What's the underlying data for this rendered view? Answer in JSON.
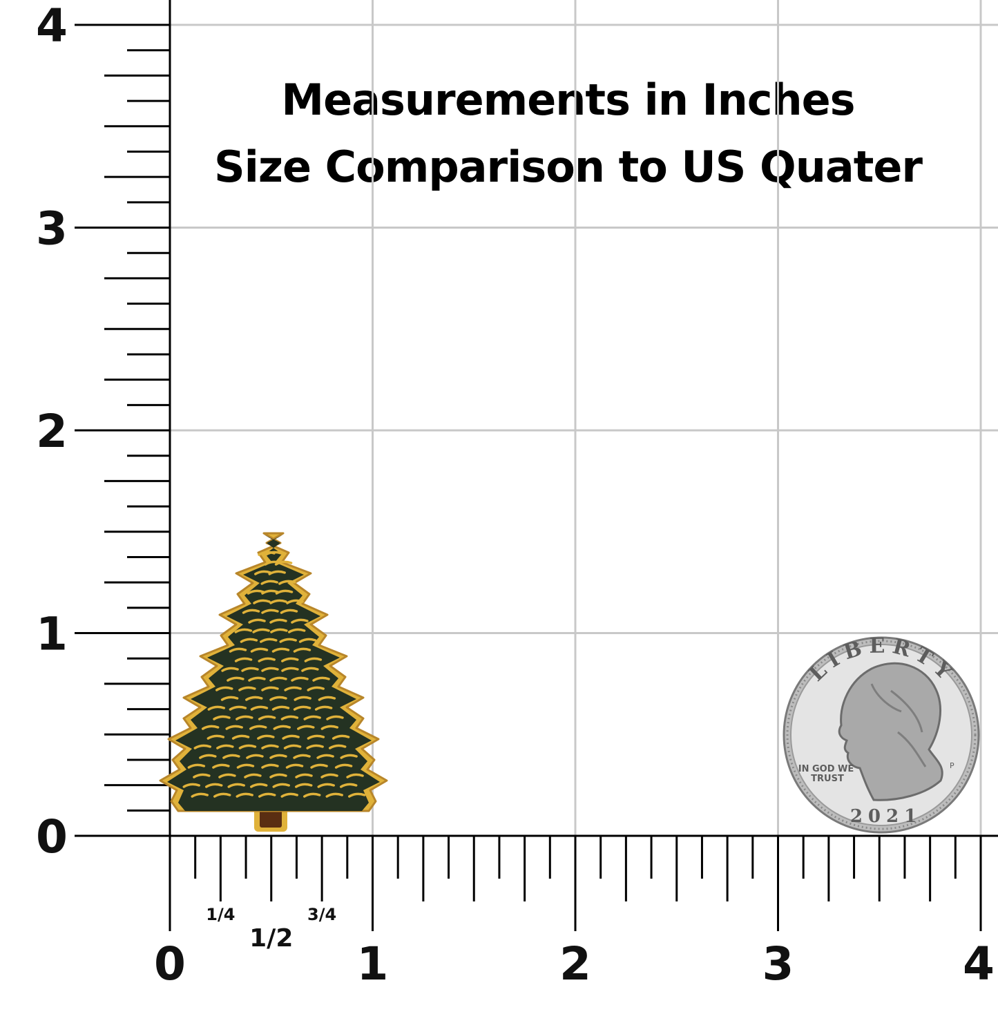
{
  "heading": {
    "line1": "Measurements in Inches",
    "line2": "Size Comparison to US Quater"
  },
  "ruler": {
    "unit_labels": [
      "0",
      "1",
      "2",
      "3",
      "4"
    ],
    "fraction_labels": [
      "1/4",
      "1/2",
      "3/4"
    ]
  },
  "coin": {
    "top_text": "LIBERTY",
    "motto_line1": "IN GOD WE",
    "motto_line2": "TRUST",
    "year": "2021",
    "mint_mark": "P"
  },
  "colors": {
    "grid": "#c8c8c8",
    "ruler": "#000000",
    "tree_green": "#243222",
    "tree_gold": "#e0b23a",
    "trunk": "#5a2e12",
    "coin_silver": "#c9c9c9"
  }
}
